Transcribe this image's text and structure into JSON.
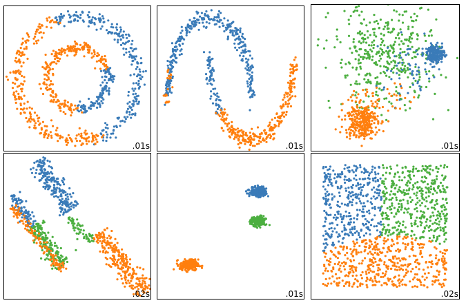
{
  "colors": {
    "blue": "#3a7bb8",
    "orange": "#ff7f0e",
    "green": "#4caf40",
    "frame": "#000000"
  },
  "chart_data": [
    {
      "type": "scatter",
      "dataset": "noisy_circles",
      "timing": ".01s",
      "clusters": [
        {
          "color": "blue",
          "shape": "ring-arc",
          "cx": 0,
          "cy": 0,
          "r": 1.0,
          "from_deg": -70,
          "to_deg": 110,
          "noise": 0.06,
          "n": 250
        },
        {
          "color": "orange",
          "shape": "ring-arc",
          "cx": 0,
          "cy": 0,
          "r": 1.0,
          "from_deg": 110,
          "to_deg": 290,
          "noise": 0.06,
          "n": 250
        },
        {
          "color": "blue",
          "shape": "ring-arc",
          "cx": 0,
          "cy": 0,
          "r": 0.5,
          "from_deg": -90,
          "to_deg": 20,
          "noise": 0.05,
          "n": 120
        },
        {
          "color": "orange",
          "shape": "ring-arc",
          "cx": 0,
          "cy": 0,
          "r": 0.5,
          "from_deg": 20,
          "to_deg": 270,
          "noise": 0.05,
          "n": 240
        }
      ],
      "xlim": [
        -1.2,
        1.2
      ],
      "ylim": [
        -1.2,
        1.2
      ],
      "axes": false
    },
    {
      "type": "scatter",
      "dataset": "noisy_moons",
      "timing": ".01s",
      "clusters": [
        {
          "color": "blue",
          "shape": "moon-upper",
          "t_from": 0,
          "t_to": 1,
          "noise": 0.05,
          "n": 340
        },
        {
          "color": "blue",
          "shape": "moon-lower",
          "t_from": 0,
          "t_to": 0.22,
          "noise": 0.05,
          "n": 70
        },
        {
          "color": "orange",
          "shape": "moon-lower",
          "t_from": 0.22,
          "t_to": 1,
          "noise": 0.05,
          "n": 280
        },
        {
          "color": "orange",
          "shape": "moon-upper-tail",
          "t_from": 0.9,
          "t_to": 1,
          "noise": 0.05,
          "n": 20
        }
      ],
      "xlim": [
        -1.25,
        2.25
      ],
      "ylim": [
        -0.65,
        1.15
      ],
      "axes": false
    },
    {
      "type": "scatter",
      "dataset": "varied_blobs",
      "timing": ".01s",
      "clusters": [
        {
          "color": "green",
          "shape": "gauss",
          "cx": 0.35,
          "cy": 0.6,
          "sx": 0.55,
          "sy": 0.6,
          "n": 420
        },
        {
          "color": "blue",
          "shape": "gauss",
          "cx": 1.4,
          "cy": 0.65,
          "sx": 0.09,
          "sy": 0.1,
          "n": 200
        },
        {
          "color": "blue",
          "shape": "gauss",
          "cx": 0.85,
          "cy": 0.25,
          "sx": 0.35,
          "sy": 0.35,
          "n": 60
        },
        {
          "color": "orange",
          "shape": "gauss",
          "cx": -0.15,
          "cy": -0.9,
          "sx": 0.17,
          "sy": 0.2,
          "n": 300
        },
        {
          "color": "orange",
          "shape": "gauss",
          "cx": 0.2,
          "cy": -0.4,
          "sx": 0.35,
          "sy": 0.2,
          "n": 45
        }
      ],
      "xlim": [
        -1.2,
        1.9
      ],
      "ylim": [
        -1.6,
        1.8
      ],
      "axes": false
    },
    {
      "type": "scatter",
      "dataset": "anisotropic",
      "timing": ".02s",
      "clusters": [
        {
          "color": "blue",
          "shape": "line-band",
          "x0": -0.55,
          "y0": 1.35,
          "x1": 0.05,
          "y1": 0.5,
          "width": 0.08,
          "n": 220
        },
        {
          "color": "blue",
          "shape": "line-band",
          "x0": -0.95,
          "y0": 0.75,
          "x1": -0.6,
          "y1": 0.2,
          "width": 0.05,
          "n": 90
        },
        {
          "color": "green",
          "shape": "line-band",
          "x0": -0.6,
          "y0": 0.2,
          "x1": -0.1,
          "y1": -0.5,
          "width": 0.08,
          "n": 190
        },
        {
          "color": "green",
          "shape": "line-band",
          "x0": 0.0,
          "y0": 0.35,
          "x1": 0.4,
          "y1": -0.1,
          "width": 0.05,
          "n": 60
        },
        {
          "color": "orange",
          "shape": "line-band",
          "x0": -0.95,
          "y0": 0.55,
          "x1": -0.1,
          "y1": -0.6,
          "width": 0.04,
          "n": 120
        },
        {
          "color": "orange",
          "shape": "line-band",
          "x0": 0.5,
          "y0": 0.1,
          "x1": 1.3,
          "y1": -1.0,
          "width": 0.09,
          "n": 260
        }
      ],
      "xlim": [
        -1.1,
        1.4
      ],
      "ylim": [
        -1.1,
        1.5
      ],
      "axes": false
    },
    {
      "type": "scatter",
      "dataset": "blobs",
      "timing": ".01s",
      "clusters": [
        {
          "color": "blue",
          "shape": "gauss",
          "cx": 0.6,
          "cy": 0.75,
          "sx": 0.09,
          "sy": 0.055,
          "n": 220
        },
        {
          "color": "green",
          "shape": "gauss",
          "cx": 0.6,
          "cy": 0.1,
          "sx": 0.08,
          "sy": 0.055,
          "n": 200
        },
        {
          "color": "orange",
          "shape": "gauss",
          "cx": -0.9,
          "cy": -0.85,
          "sx": 0.1,
          "sy": 0.06,
          "n": 230
        }
      ],
      "xlim": [
        -1.6,
        1.6
      ],
      "ylim": [
        -1.6,
        1.6
      ],
      "axes": false
    },
    {
      "type": "scatter",
      "dataset": "no_structure",
      "timing": ".02s",
      "clusters": [
        {
          "color": "uniform-partition",
          "shape": "uniform-square",
          "xmin": 0,
          "xmax": 1,
          "ymin": 0,
          "ymax": 1,
          "n": 1300,
          "rule": "below curve y = 0.42 - 0.45*(x-0.55)^2 → orange; above: x < 0.47 → blue, else green"
        }
      ],
      "xlim": [
        -0.1,
        1.1
      ],
      "ylim": [
        -0.1,
        1.1
      ],
      "axes": false
    }
  ]
}
